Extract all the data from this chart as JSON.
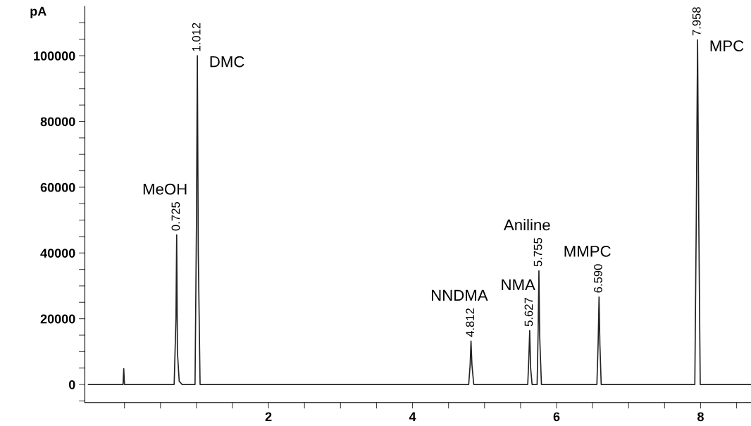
{
  "chart_data": {
    "type": "line",
    "ylabel": "pA",
    "x": [
      -0.5,
      -0.02,
      -0.01,
      0.0,
      0.69,
      0.715,
      0.725,
      0.735,
      0.76,
      0.8,
      0.98,
      1.0,
      1.012,
      1.025,
      1.05,
      4.78,
      4.8,
      4.812,
      4.825,
      4.85,
      5.6,
      5.615,
      5.627,
      5.64,
      5.66,
      5.73,
      5.745,
      5.755,
      5.765,
      5.79,
      6.56,
      6.578,
      6.59,
      6.602,
      6.62,
      7.92,
      7.94,
      7.958,
      7.975,
      7.995,
      8.7
    ],
    "series": [
      {
        "color": "#222222",
        "values": [
          0,
          0,
          4800,
          0,
          0,
          20000,
          45500,
          10000,
          1000,
          0,
          0,
          50000,
          100000,
          40000,
          0,
          0,
          6000,
          13200,
          6000,
          0,
          0,
          8000,
          16400,
          5000,
          0,
          0,
          17000,
          34600,
          15000,
          0,
          0,
          13000,
          26600,
          12000,
          0,
          0,
          50000,
          104800,
          50000,
          0,
          0
        ]
      }
    ],
    "xlim": [
      -0.55,
      8.7
    ],
    "xticks": [
      {
        "value": 0,
        "label": null
      },
      {
        "value": 0.5,
        "label": null
      },
      {
        "value": 1,
        "label": null
      },
      {
        "value": 1.5,
        "label": null
      },
      2,
      {
        "value": 2.5,
        "label": null
      },
      {
        "value": 3,
        "label": null
      },
      {
        "value": 3.5,
        "label": null
      },
      4,
      {
        "value": 4.5,
        "label": null
      },
      {
        "value": 5,
        "label": null
      },
      {
        "value": 5.5,
        "label": null
      },
      6,
      {
        "value": 6.5,
        "label": null
      },
      {
        "value": 7,
        "label": null
      },
      {
        "value": 7.5,
        "label": null
      },
      8,
      {
        "value": 8.5,
        "label": null
      }
    ],
    "ylim": [
      -5500,
      115000
    ],
    "yticks": [
      {
        "value": -5000,
        "label": null
      },
      0,
      {
        "value": 5000,
        "label": null
      },
      {
        "value": 10000,
        "label": null
      },
      {
        "value": 15000,
        "label": null
      },
      20000,
      {
        "value": 25000,
        "label": null
      },
      {
        "value": 30000,
        "label": null
      },
      {
        "value": 35000,
        "label": null
      },
      40000,
      {
        "value": 45000,
        "label": null
      },
      {
        "value": 50000,
        "label": null
      },
      {
        "value": 55000,
        "label": null
      },
      60000,
      {
        "value": 65000,
        "label": null
      },
      {
        "value": 70000,
        "label": null
      },
      {
        "value": 75000,
        "label": null
      },
      80000,
      {
        "value": 85000,
        "label": null
      },
      {
        "value": 90000,
        "label": null
      },
      {
        "value": 95000,
        "label": null
      },
      100000,
      {
        "value": 105000,
        "label": null
      },
      {
        "value": 110000,
        "label": null
      }
    ],
    "grid": false,
    "marker": "none",
    "line_style": "solid",
    "annotations": [
      {
        "text": "0.725",
        "x": 0.725,
        "y": 45500
      },
      {
        "text": "1.012",
        "x": 1.012,
        "y": 100000
      },
      {
        "text": "4.812",
        "x": 4.812,
        "y": 13200
      },
      {
        "text": "5.627",
        "x": 5.627,
        "y": 16400
      },
      {
        "text": "5.755",
        "x": 5.755,
        "y": 34600
      },
      {
        "text": "6.590",
        "x": 6.59,
        "y": 26600
      },
      {
        "text": "7.958",
        "x": 7.958,
        "y": 104800
      },
      {
        "text": "MeOH",
        "x": 0.725,
        "y": 45500
      },
      {
        "text": "DMC",
        "x": 1.012,
        "y": 100000
      },
      {
        "text": "NNDMA",
        "x": 4.812,
        "y": 13200
      },
      {
        "text": "NMA",
        "x": 5.627,
        "y": 16400
      },
      {
        "text": "Aniline",
        "x": 5.755,
        "y": 34600
      },
      {
        "text": "MMPC",
        "x": 6.59,
        "y": 26600
      },
      {
        "text": "MPC",
        "x": 7.958,
        "y": 104800
      }
    ]
  }
}
